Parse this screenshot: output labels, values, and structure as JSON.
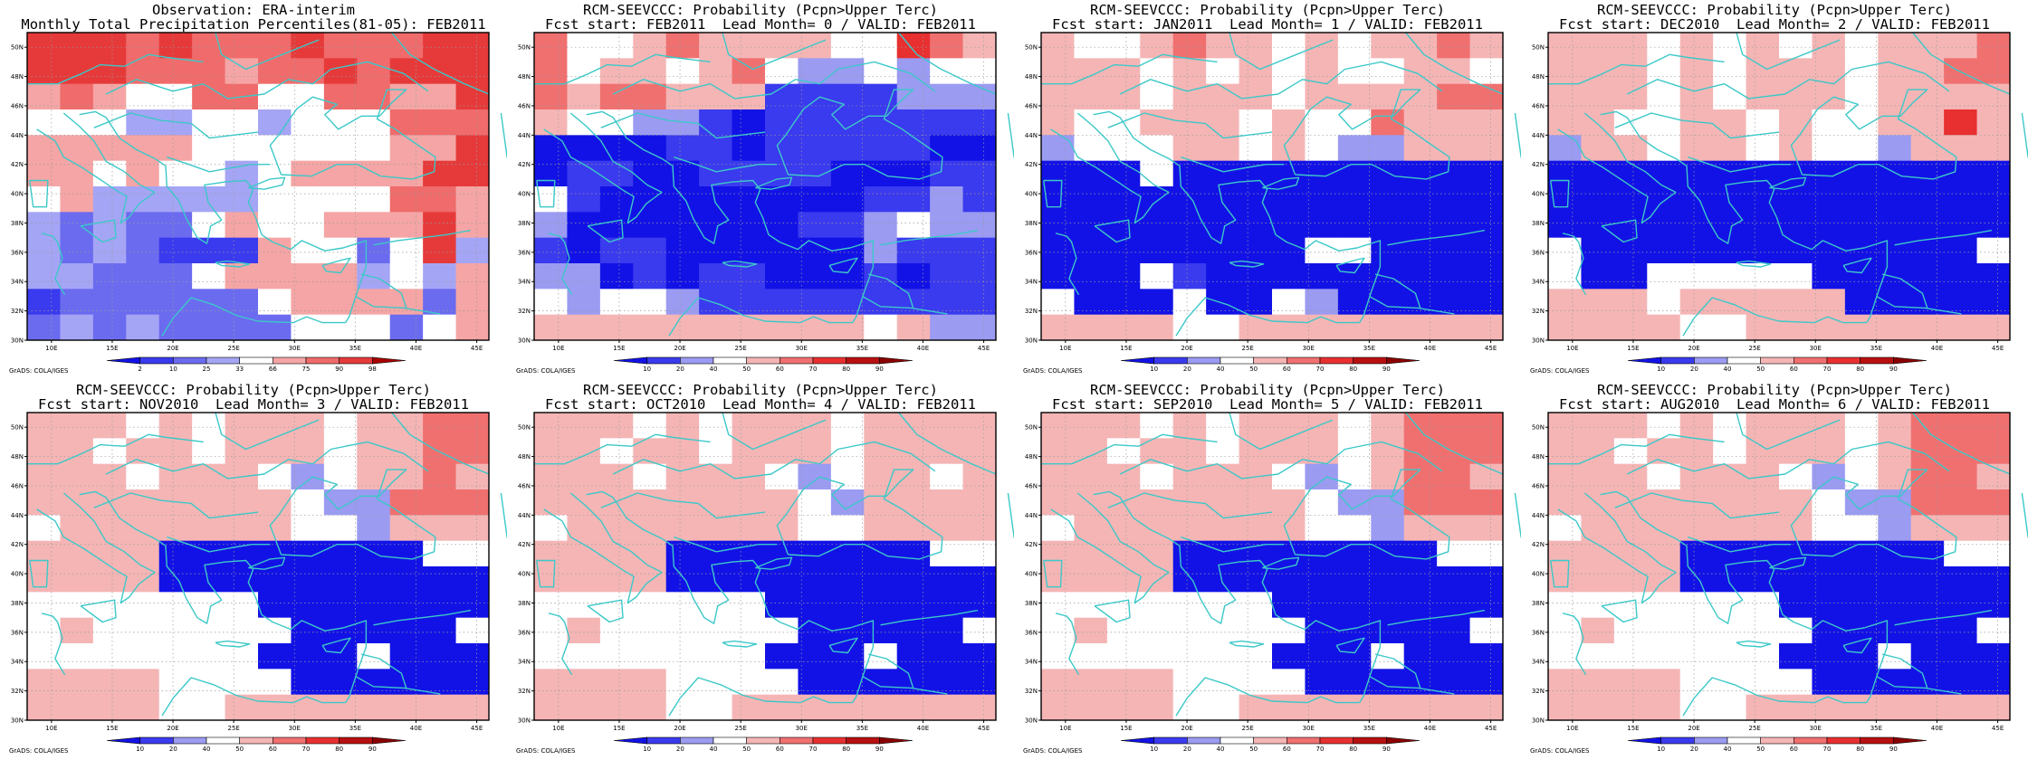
{
  "credit": "GrADS: COLA/IGES",
  "maps": {
    "lon_labels": [
      "10E",
      "15E",
      "20E",
      "25E",
      "30E",
      "35E",
      "40E",
      "45E"
    ],
    "lat_labels": [
      "30N",
      "32N",
      "34N",
      "36N",
      "38N",
      "40N",
      "42N",
      "44N",
      "46N",
      "48N",
      "50N"
    ],
    "lon_range": [
      8,
      46
    ],
    "lat_range": [
      30,
      51
    ],
    "grid_lines": true,
    "coastline_color": "#3cc8c8",
    "obs_colorbar": {
      "labels": [
        "2",
        "10",
        "25",
        "33",
        "66",
        "75",
        "90",
        "98"
      ],
      "colors": [
        "#1212e6",
        "#3a3aee",
        "#6b6bf0",
        "#a5a5f5",
        "#ffffff",
        "#f5a5a5",
        "#f06b6b",
        "#e63a3a",
        "#a80000"
      ]
    },
    "prob_colorbar": {
      "labels": [
        "10",
        "20",
        "40",
        "50",
        "60",
        "70",
        "80",
        "90"
      ],
      "colors": [
        "#1212e6",
        "#3a3aee",
        "#9b9bf2",
        "#ffffff",
        "#f5b5b5",
        "#f07070",
        "#e83030",
        "#b81010",
        "#8a0000"
      ]
    }
  },
  "panels": [
    {
      "title1": "Observation: ERA-interim",
      "title2": "Monthly Total Precipitation Percentiles(81-05): FEB2011",
      "colorbar": "obs",
      "field": [
        "88878777877788",
        "88877767787888",
        "67655775577668",
        "55544554555777",
        "66666555555668",
        "66565545666688",
        "56444445555776",
        "43433565566686",
        "43432226553584",
        "44333566664546",
        "23333335666636",
        "34343333555356"
      ]
    },
    {
      "title1": "RCM-SEEVCCC: Probability (Pcpn>Upper Terc)",
      "title2": "Fcst start: FEB2011  Lead Month= 0 / VALID: FEB2011",
      "colorbar": "prob",
      "field": [
        "64456555544765",
        "64554564334344",
        "65665552222333",
        "54433212222222",
        "11112212222211",
        "12211222211122",
        "42111111112232",
        "31111111223433",
        "21221111113222",
        "33121221112122",
        "43443222222222",
        "55555555554533"
      ]
    },
    {
      "title1": "RCM-SEEVCCC: Probability (Pcpn>Upper Terc)",
      "title2": "Fcst start: JAN2011  Lead Month= 1 / VALID: FEB2011",
      "colorbar": "prob",
      "field": [
        "54456554545565",
        "55545454544554",
        "55545554555566",
        "54455545446555",
        "34445545433555",
        "11141111111111",
        "11111111111111",
        "11111111111111",
        "11111111441111",
        "11142111111111",
        "41114114311111",
        "55554455555555"
      ]
    },
    {
      "title1": "RCM-SEEVCCC: Probability (Pcpn>Upper Terc)",
      "title2": "Fcst start: DEC2010  Lead Month= 2 / VALID: FEB2011",
      "colorbar": "prob",
      "field": [
        "55545454545556",
        "55545455545566",
        "55545455545555",
        "55445545445575",
        "35545545443555",
        "11111111111111",
        "11111111111111",
        "11111111111111",
        "41111111111114",
        "41144444111111",
        "55545555511111",
        "55554455555555"
      ]
    },
    {
      "title1": "RCM-SEEVCCC: Probability (Pcpn>Upper Terc)",
      "title2": "Fcst start: NOV2010  Lead Month= 3 / VALID: FEB2011",
      "colorbar": "prob",
      "field": [
        "55545455545566",
        "55455455545566",
        "55545554345565",
        "55555555433666",
        "45555555443555",
        "55551111111144",
        "55551111111111",
        "44444441111111",
        "45444444111114",
        "44444441114111",
        "55554444111111",
        "55554455555555"
      ]
    },
    {
      "title1": "RCM-SEEVCCC: Probability (Pcpn>Upper Terc)",
      "title2": "Fcst start: OCT2010  Lead Month= 4 / VALID: FEB2011",
      "colorbar": "prob",
      "field": [
        "55545455545555",
        "55455455545555",
        "55545554345545",
        "55555555435555",
        "45555555445555",
        "55551111111144",
        "55551111111111",
        "44444441111111",
        "45444444111114",
        "44444441114111",
        "55554444111111",
        "55554455555555"
      ]
    },
    {
      "title1": "RCM-SEEVCCC: Probability (Pcpn>Upper Terc)",
      "title2": "Fcst start: SEP2010  Lead Month= 5 / VALID: FEB2011",
      "colorbar": "prob",
      "field": [
        "55545455545666",
        "55455455545666",
        "55545554345665",
        "55555555433666",
        "45555555443555",
        "55551111111144",
        "55551111111111",
        "44444441111111",
        "45444444111114",
        "44444441114111",
        "55554444111111",
        "55554455555555"
      ]
    },
    {
      "title1": "RCM-SEEVCCC: Probability (Pcpn>Upper Terc)",
      "title2": "Fcst start: AUG2010  Lead Month= 6 / VALID: FEB2011",
      "colorbar": "prob",
      "field": [
        "55545455545666",
        "55455455545666",
        "55545554345665",
        "55555555433666",
        "45555555443555",
        "55551111111144",
        "55551111111111",
        "44444441111111",
        "45444444111114",
        "44444441114111",
        "55554444111111",
        "55554455555555"
      ]
    }
  ]
}
